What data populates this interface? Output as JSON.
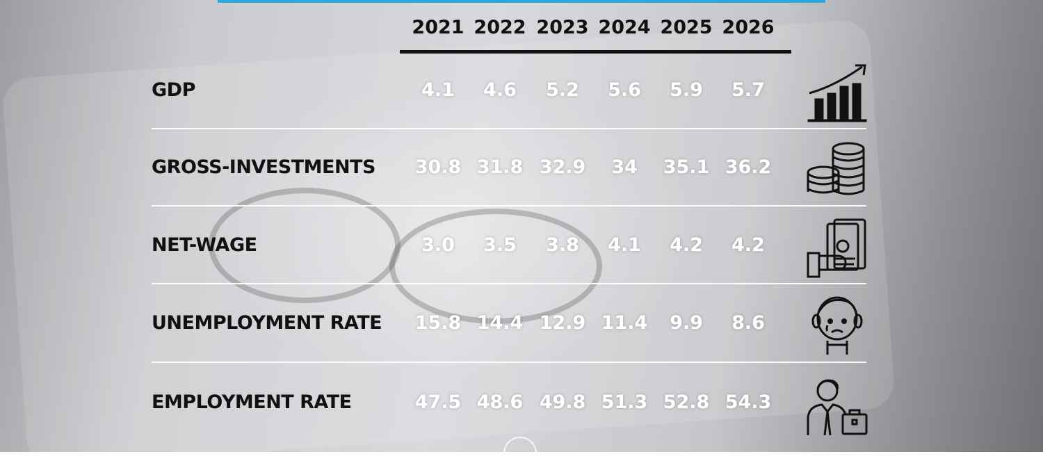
{
  "chart_data": {
    "type": "table",
    "columns": [
      "2021",
      "2022",
      "2023",
      "2024",
      "2025",
      "2026"
    ],
    "rows": [
      {
        "label": "GDP",
        "icon": "growth-chart-icon",
        "values": [
          "4.1",
          "4.6",
          "5.2",
          "5.6",
          "5.9",
          "5.7"
        ]
      },
      {
        "label": "GROSS-INVESTMENTS",
        "icon": "coin-stacks-icon",
        "values": [
          "30.8",
          "31.8",
          "32.9",
          "34",
          "35.1",
          "36.2"
        ]
      },
      {
        "label": "NET-WAGE",
        "icon": "hand-money-icon",
        "values": [
          "3.0",
          "3.5",
          "3.8",
          "4.1",
          "4.2",
          "4.2"
        ]
      },
      {
        "label": "UNEMPLOYMENT RATE",
        "icon": "sad-person-icon",
        "values": [
          "15.8",
          "14.4",
          "12.9",
          "11.4",
          "9.9",
          "8.6"
        ]
      },
      {
        "label": "EMPLOYMENT RATE",
        "icon": "businessman-briefcase-icon",
        "values": [
          "47.5",
          "48.6",
          "49.8",
          "51.3",
          "52.8",
          "54.3"
        ]
      }
    ]
  },
  "colors": {
    "accent_bar": "#2aa7e0",
    "header_text": "#111111",
    "value_text": "#ffffff",
    "separator": "#ffffff"
  }
}
